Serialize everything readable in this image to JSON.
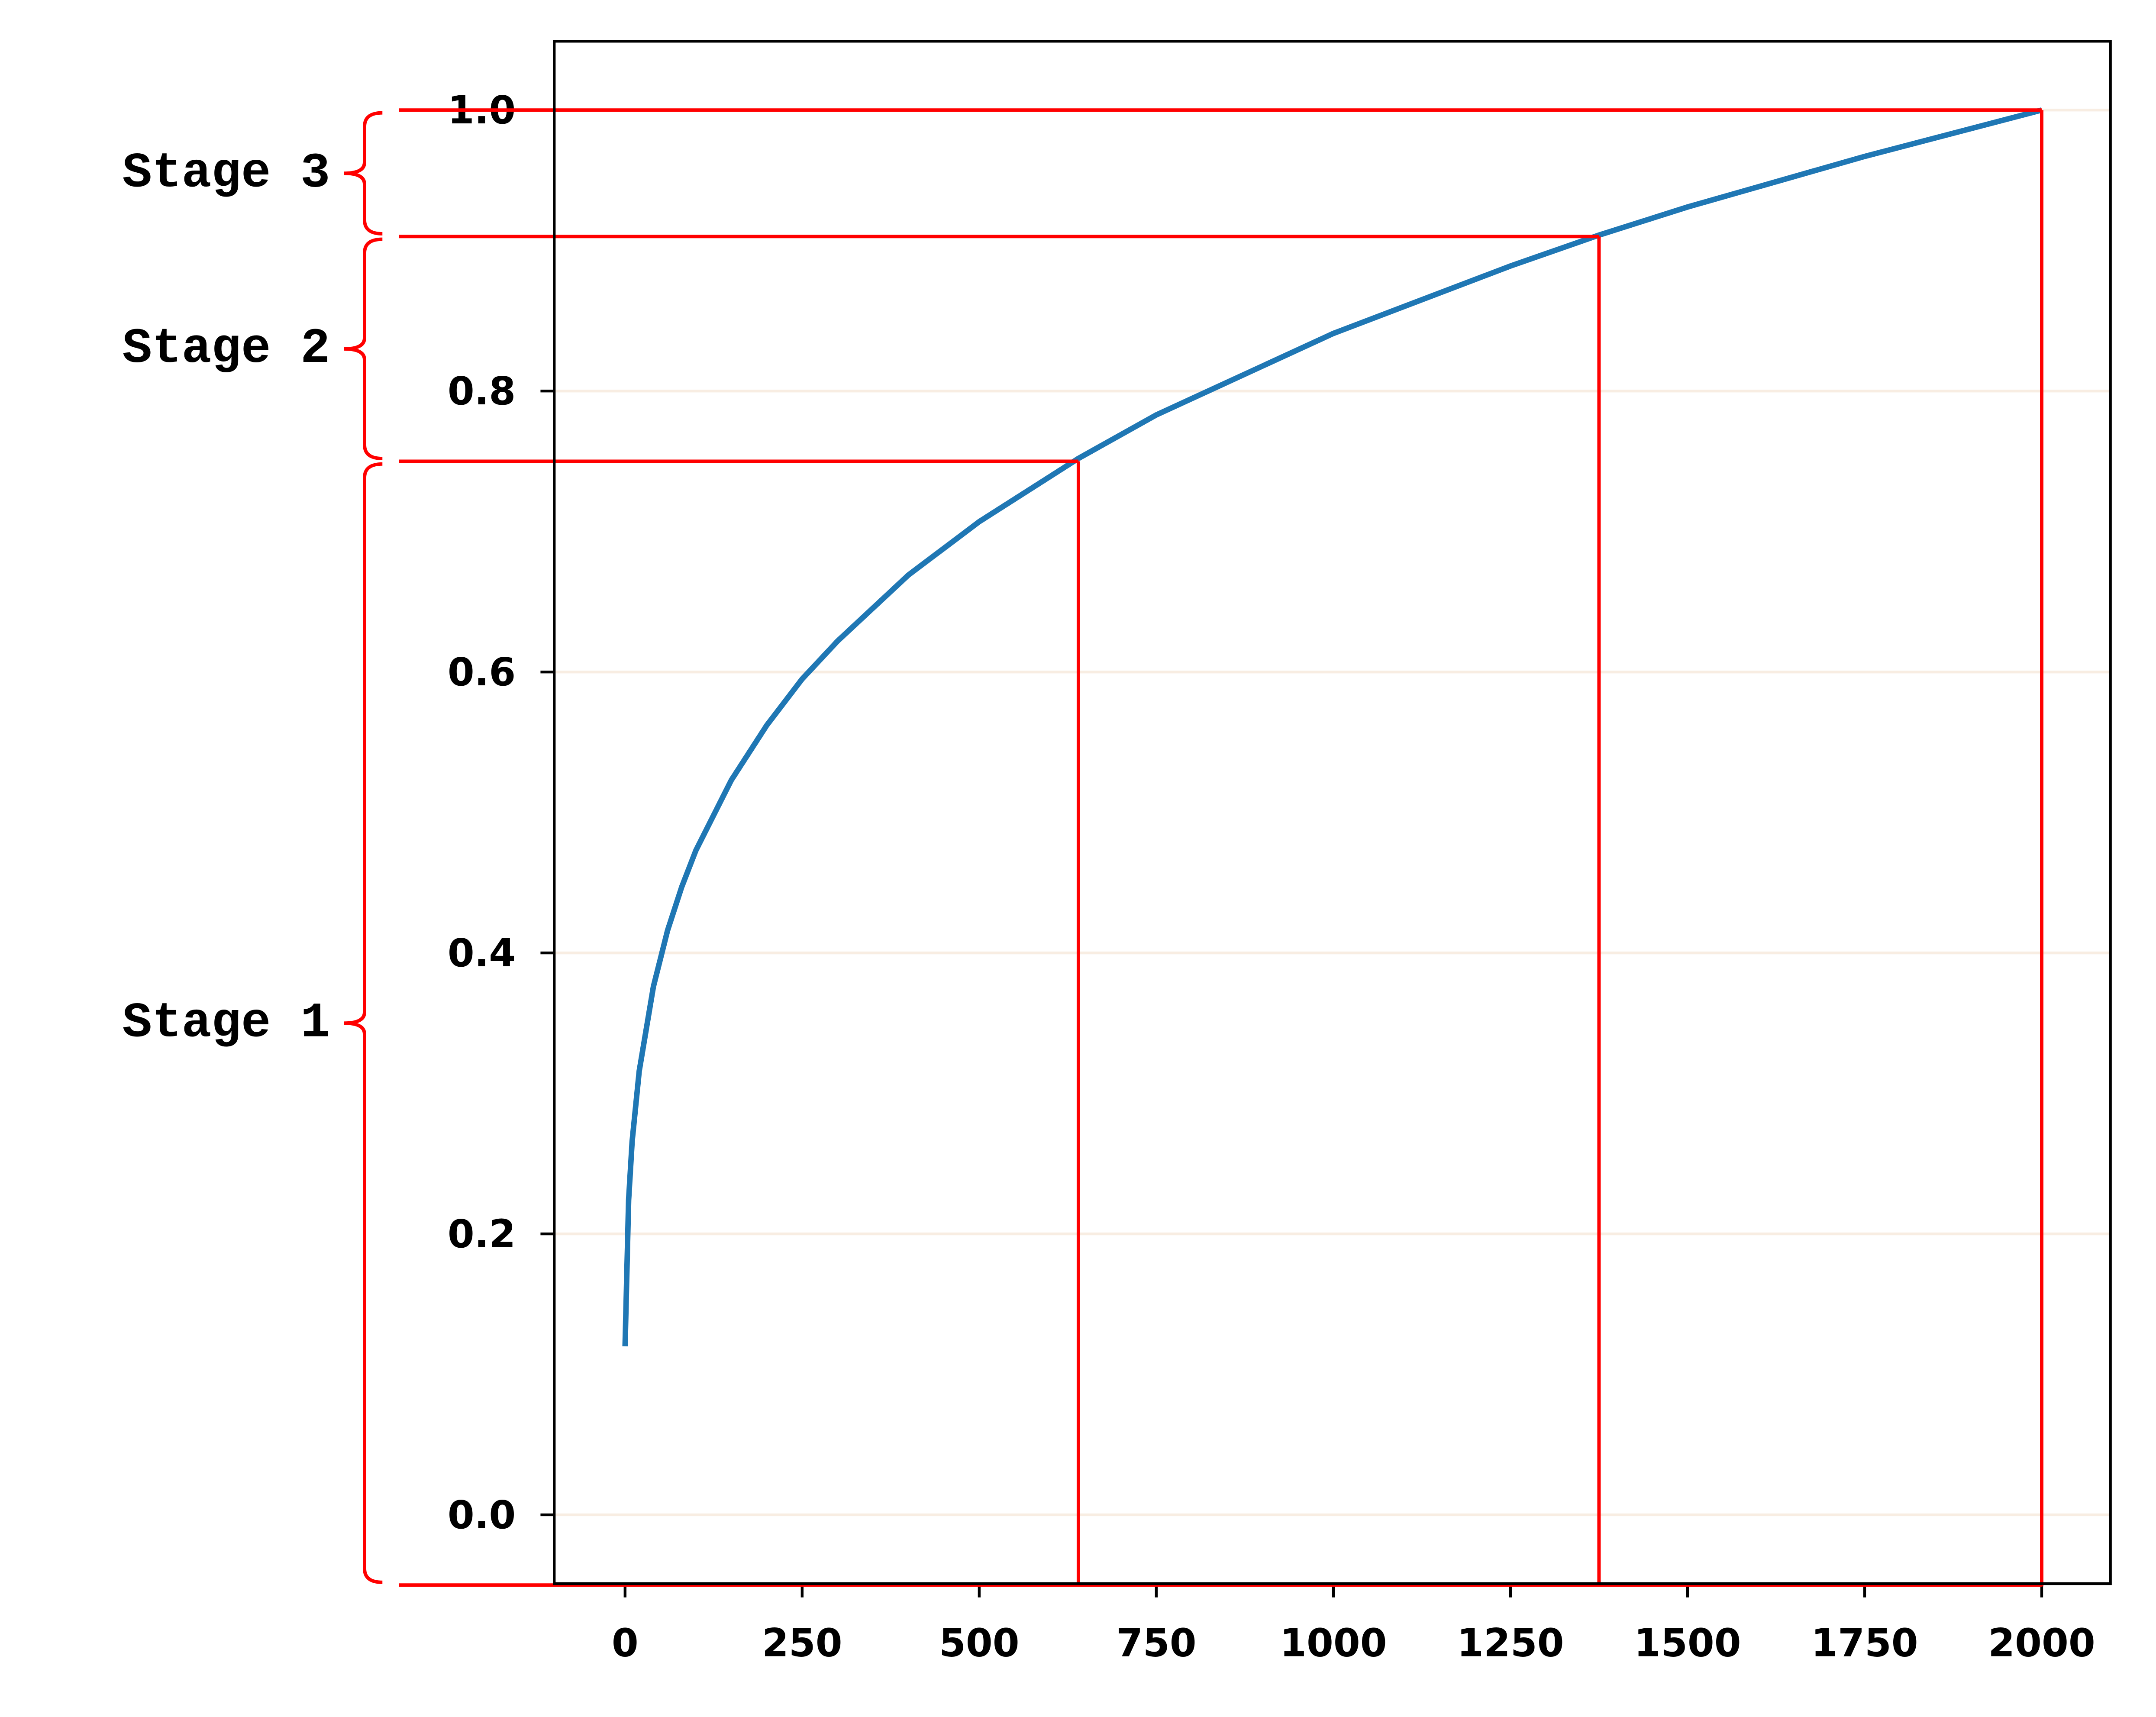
{
  "chart_data": {
    "type": "line",
    "x": [
      0,
      5,
      10,
      20,
      40,
      60,
      80,
      100,
      150,
      200,
      250,
      300,
      400,
      500,
      640,
      750,
      1000,
      1250,
      1375,
      1500,
      1750,
      2000
    ],
    "series": [
      {
        "color": "#1f77b4",
        "values": [
          0.12,
          0.224,
          0.266,
          0.316,
          0.376,
          0.416,
          0.447,
          0.473,
          0.523,
          0.562,
          0.595,
          0.622,
          0.669,
          0.707,
          0.752,
          0.783,
          0.841,
          0.889,
          0.911,
          0.931,
          0.967,
          1.0
        ]
      }
    ],
    "xlim": [
      -100,
      2097
    ],
    "ylim": [
      -0.049,
      1.049
    ],
    "xticks": [
      0,
      250,
      500,
      750,
      1000,
      1250,
      1500,
      1750,
      2000
    ],
    "yticks": [
      {
        "value": 0,
        "label": "0.0"
      },
      0.2,
      0.4,
      0.6,
      0.8,
      {
        "value": 1,
        "label": "1.0"
      }
    ],
    "grid": true,
    "grid_color": "#f8ede2",
    "stage_color": "#ff0000",
    "stages": [
      {
        "label": "Stage 1",
        "from": -0.05,
        "to": 0.75,
        "x": 640
      },
      {
        "label": "Stage 2",
        "from": 0.75,
        "to": 0.91,
        "x": 1375
      },
      {
        "label": "Stage 3",
        "from": 0.91,
        "to": 1.0,
        "x": 2000
      }
    ]
  }
}
